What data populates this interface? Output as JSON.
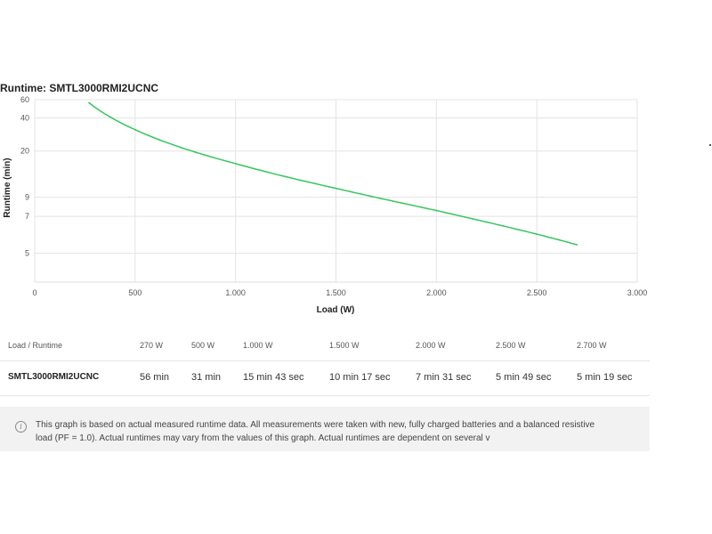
{
  "chart_data": {
    "type": "line",
    "title": "Runtime: SMTL3000RMI2UCNC",
    "xlabel": "Load (W)",
    "ylabel": "Runtime (min)",
    "xlim": [
      0,
      3000
    ],
    "ylim": [
      4.3,
      60
    ],
    "y_scale": "nonlinear",
    "x_ticks": [
      {
        "value": 0,
        "label": "0"
      },
      {
        "value": 500,
        "label": "500"
      },
      {
        "value": 1000,
        "label": "1.000"
      },
      {
        "value": 1500,
        "label": "1.500"
      },
      {
        "value": 2000,
        "label": "2.000"
      },
      {
        "value": 2500,
        "label": "2.500"
      },
      {
        "value": 3000,
        "label": "3.000"
      }
    ],
    "y_ticks": [
      {
        "value": 60,
        "label": "60"
      },
      {
        "value": 40,
        "label": "40"
      },
      {
        "value": 20,
        "label": "20"
      },
      {
        "value": 9,
        "label": "9"
      },
      {
        "value": 7,
        "label": "7"
      },
      {
        "value": 5,
        "label": "5"
      }
    ],
    "grid": true,
    "series": [
      {
        "color": "#33c65a",
        "x": [
          270,
          500,
          1000,
          1500,
          2000,
          2500,
          2700
        ],
        "y": [
          56,
          31,
          15.72,
          10.28,
          7.52,
          5.82,
          5.32
        ]
      }
    ]
  },
  "table": {
    "header_label": "Load / Runtime",
    "columns": [
      "270 W",
      "500 W",
      "1.000 W",
      "1.500 W",
      "2.000 W",
      "2.500 W",
      "2.700 W"
    ],
    "rows": [
      {
        "model": "SMTL3000RMI2UCNC",
        "values": [
          "56 min",
          "31 min",
          "15 min 43 sec",
          "10 min 17 sec",
          "7 min 31 sec",
          "5 min 49 sec",
          "5 min 19 sec"
        ]
      }
    ]
  },
  "disclaimer": {
    "icon": "info-icon",
    "line1": "This graph is based on actual measured runtime data. All measurements were taken with new, fully charged batteries and a balanced resistive",
    "line2": "load (PF = 1.0). Actual runtimes may vary from the values of this graph. Actual runtimes are dependent on several v"
  }
}
